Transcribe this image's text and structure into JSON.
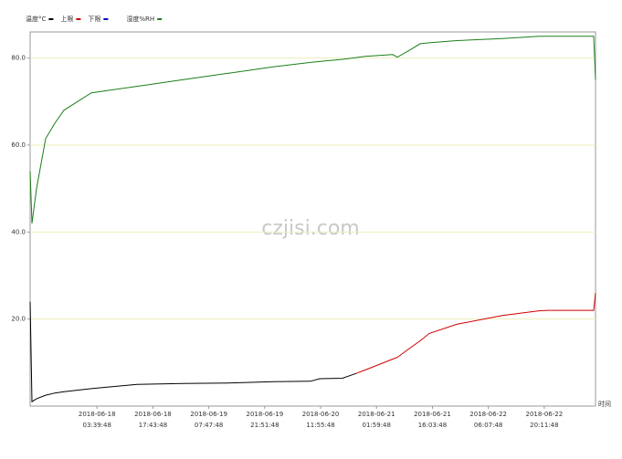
{
  "chart_data": {
    "type": "line",
    "watermark": "czjisi.com",
    "x_label": "时间",
    "x": [
      "2018-06-17T10:50",
      "2018-06-17T11:18",
      "2018-06-17T12:27",
      "2018-06-17T14:44",
      "2018-06-17T17:02",
      "2018-06-17T19:20",
      "2018-06-18T02:14",
      "2018-06-18T13:44",
      "2018-06-19T01:13",
      "2018-06-19T12:43",
      "2018-06-20T00:12",
      "2018-06-20T09:24",
      "2018-06-20T11:42",
      "2018-06-20T17:26",
      "2018-06-20T20:53",
      "2018-06-20T23:11",
      "2018-06-21T06:05",
      "2018-06-21T07:14",
      "2018-06-21T10:41",
      "2018-06-21T12:58",
      "2018-06-21T15:16",
      "2018-06-21T22:10",
      "2018-06-22T09:39",
      "2018-06-22T18:51",
      "2018-06-22T21:09",
      "2018-06-23T08:38",
      "2018-06-23T09:06"
    ],
    "series": [
      {
        "name": "温度°C",
        "color": "#000000",
        "values": [
          24,
          1,
          1.7,
          2.5,
          3,
          3.3,
          4,
          5,
          5.2,
          5.3,
          5.6,
          5.7,
          6.3,
          6.4,
          7.5,
          null,
          null,
          null,
          null,
          null,
          null,
          null,
          null,
          null,
          null,
          null,
          null
        ]
      },
      {
        "name": "上限",
        "color": "#cc0000",
        "values": [
          null,
          null,
          null,
          null,
          null,
          null,
          null,
          null,
          null,
          null,
          null,
          null,
          null,
          null,
          7.5,
          8.3,
          10.8,
          11.2,
          13.5,
          15,
          16.7,
          18.8,
          20.8,
          21.9,
          22,
          22,
          26
        ]
      },
      {
        "name": "下限",
        "color": "#0000cc",
        "values": [
          null,
          null,
          null,
          null,
          null,
          null,
          null,
          null,
          null,
          null,
          null,
          null,
          null,
          null,
          null,
          null,
          null,
          null,
          null,
          null,
          null,
          null,
          null,
          null,
          null,
          null,
          null
        ]
      },
      {
        "name": "湿度%RH",
        "color": "#1a7f1a",
        "values": [
          54,
          42,
          50,
          61.5,
          65,
          68,
          72,
          73.5,
          75,
          76.5,
          78,
          79,
          79.2,
          79.7,
          80.1,
          80.4,
          80.8,
          80.2,
          82,
          83.3,
          83.5,
          84,
          84.5,
          85,
          85,
          85,
          75
        ]
      }
    ],
    "xlim": [
      "2018-06-17T10:50",
      "2018-06-23T09:06"
    ],
    "xticks": [
      {
        "value": "2018-06-18T03:39:48",
        "label": [
          "2018-06-18",
          "03:39:48"
        ]
      },
      {
        "value": "2018-06-18T17:43:48",
        "label": [
          "2018-06-18",
          "17:43:48"
        ]
      },
      {
        "value": "2018-06-19T07:47:48",
        "label": [
          "2018-06-19",
          "07:47:48"
        ]
      },
      {
        "value": "2018-06-19T21:51:48",
        "label": [
          "2018-06-19",
          "21:51:48"
        ]
      },
      {
        "value": "2018-06-20T11:55:48",
        "label": [
          "2018-06-20",
          "11:55:48"
        ]
      },
      {
        "value": "2018-06-21T01:59:48",
        "label": [
          "2018-06-21",
          "01:59:48"
        ]
      },
      {
        "value": "2018-06-21T16:03:48",
        "label": [
          "2018-06-21",
          "16:03:48"
        ]
      },
      {
        "value": "2018-06-22T06:07:48",
        "label": [
          "2018-06-22",
          "06:07:48"
        ]
      },
      {
        "value": "2018-06-22T20:11:48",
        "label": [
          "2018-06-22",
          "20:11:48"
        ]
      }
    ],
    "ylim": [
      0,
      86
    ],
    "yticks": [
      {
        "value": 20,
        "label": "20.0"
      },
      {
        "value": 40,
        "label": "40.0"
      },
      {
        "value": 60,
        "label": "60.0"
      },
      {
        "value": 80,
        "label": "80.0"
      }
    ],
    "grid": true,
    "grid_color": "#eeeebb"
  }
}
